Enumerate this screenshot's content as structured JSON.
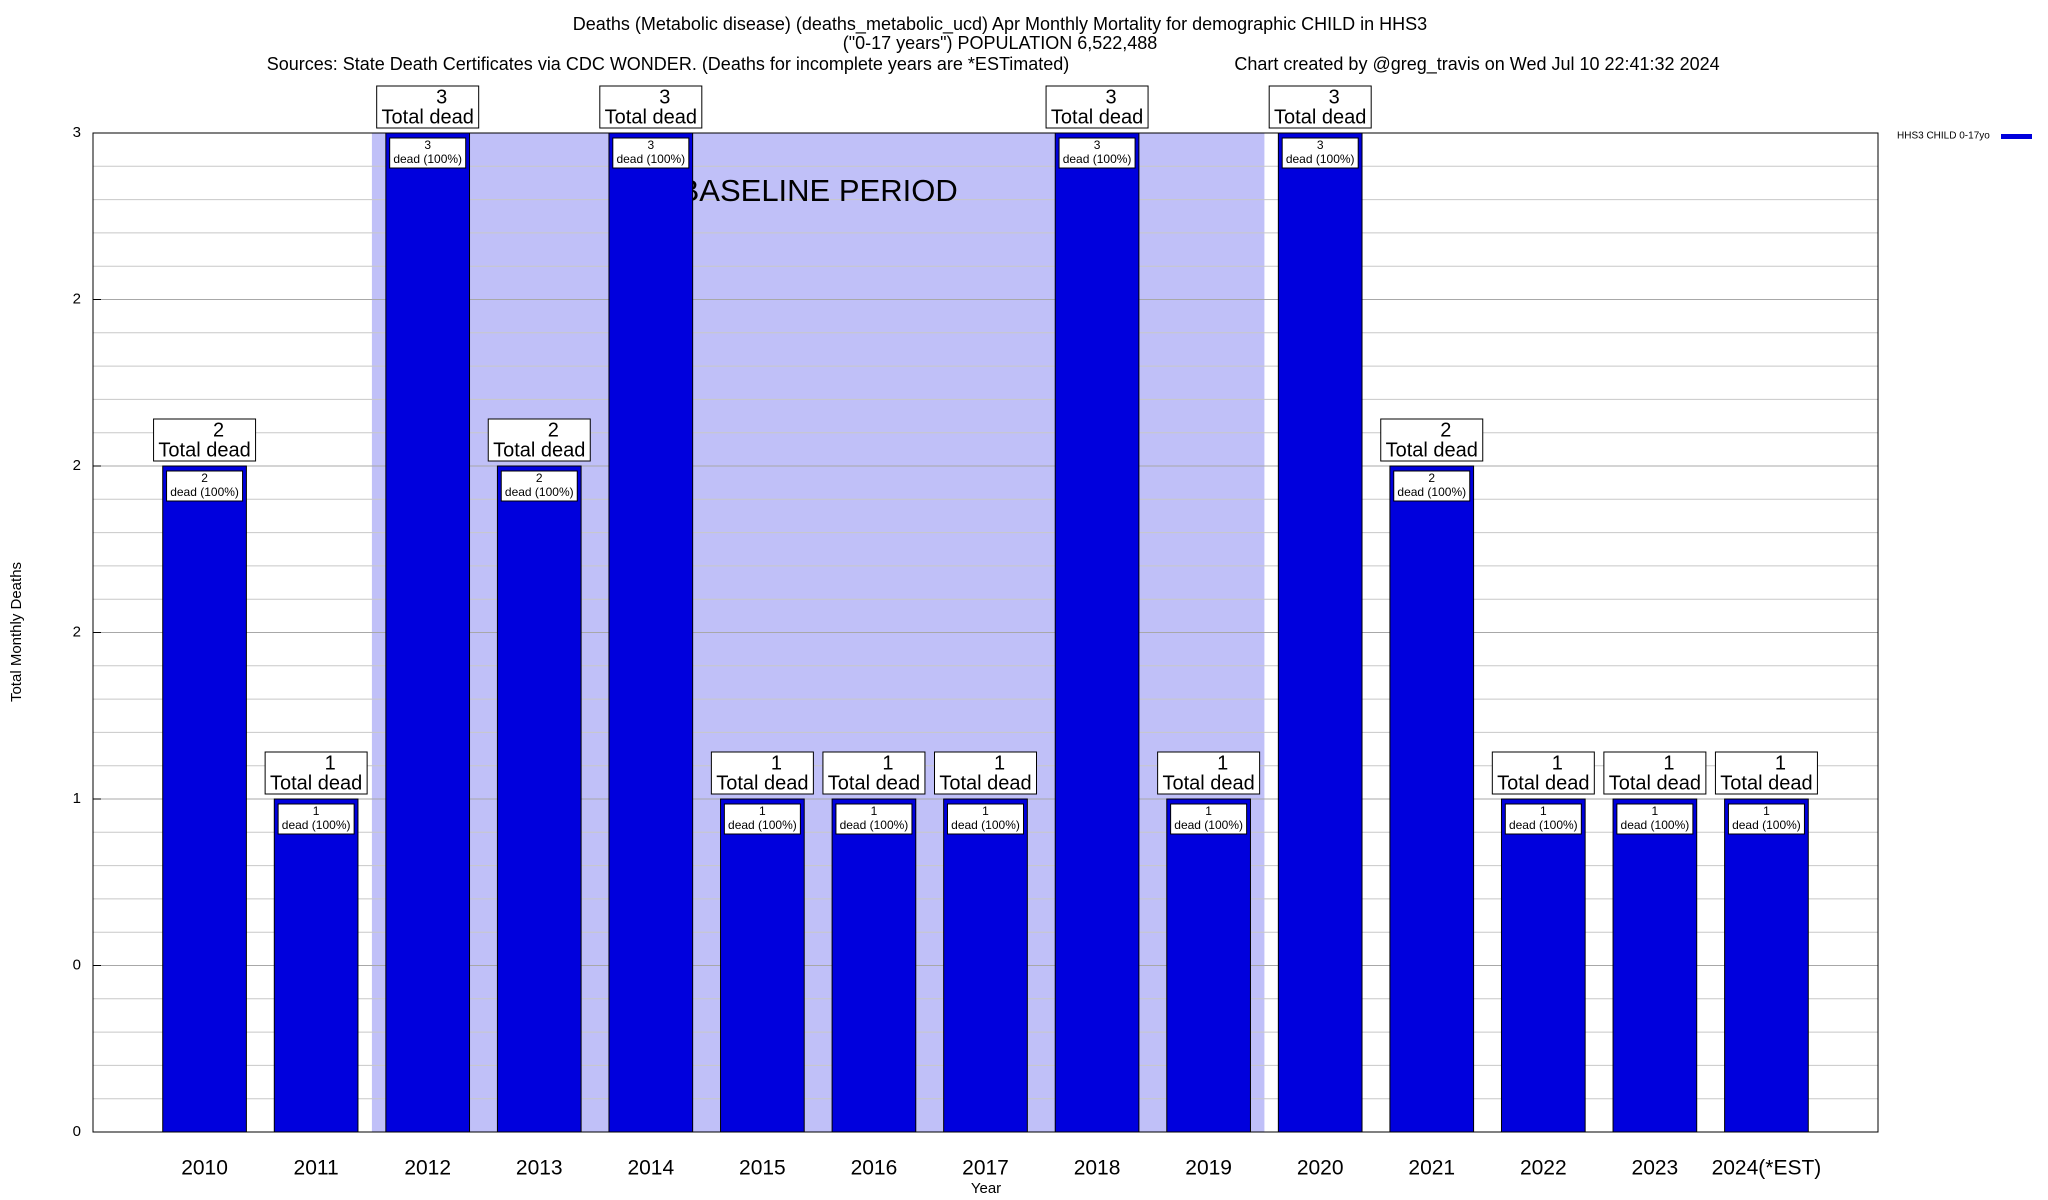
{
  "chart_data": {
    "type": "bar",
    "title": "Deaths (Metabolic disease) (deaths_metabolic_ucd) Apr Monthly Mortality for demographic CHILD in HHS3",
    "subtitle": "(\"0-17 years\") POPULATION 6,522,488",
    "source": "Sources: State Death Certificates via CDC WONDER. (Deaths for incomplete years are *ESTimated)",
    "credit": "Chart created by @greg_travis on Wed Jul 10 22:41:32 2024",
    "x_label": "Year",
    "y_label": "Total Monthly Deaths",
    "categories": [
      "2010",
      "2011",
      "2012",
      "2013",
      "2014",
      "2015",
      "2016",
      "2017",
      "2018",
      "2019",
      "2020",
      "2021",
      "2022",
      "2023",
      "2024(*EST)"
    ],
    "series": [
      {
        "name": "HHS3 CHILD 0-17yo",
        "color": "#0000dd",
        "values": [
          2,
          1,
          3,
          2,
          3,
          1,
          1,
          1,
          3,
          1,
          3,
          2,
          1,
          1,
          1
        ]
      }
    ],
    "total_label": "Total dead",
    "bar_label": "dead (100%)",
    "baseline": {
      "label": "BASELINE PERIOD",
      "start": "2012",
      "end": "2019",
      "color": "#c0c0f8"
    },
    "ylim": [
      0,
      3
    ],
    "yticks": [
      0,
      {
        "value": 0.5,
        "label": "0"
      },
      1,
      {
        "value": 1.5,
        "label": "2"
      },
      2,
      {
        "value": 2.5,
        "label": "2"
      },
      3
    ],
    "y_minor_ticks": [
      0.1,
      0.2,
      0.3,
      0.4,
      0.6,
      0.7,
      0.8,
      0.9,
      1.1,
      1.2,
      1.3,
      1.4,
      1.6,
      1.7,
      1.8,
      1.9,
      2.1,
      2.2,
      2.3,
      2.4,
      2.6,
      2.7,
      2.8,
      2.9
    ],
    "grid": true,
    "legend": "top-right"
  }
}
